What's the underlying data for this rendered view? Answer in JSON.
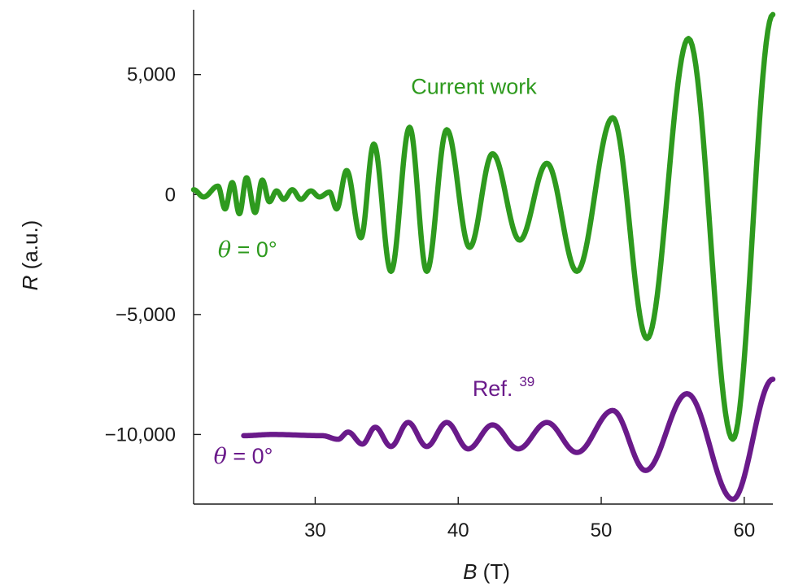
{
  "chart_data": {
    "type": "line",
    "xlim": [
      21.5,
      62
    ],
    "ylim": [
      -12900,
      7700
    ],
    "xticks": [
      30,
      40,
      50,
      60
    ],
    "xtick_labels": [
      "30",
      "40",
      "50",
      "60"
    ],
    "yticks": [
      5000,
      0,
      -5000,
      -10000
    ],
    "ytick_labels": [
      "5,000",
      "0",
      "−5,000",
      "−10,000"
    ],
    "xlabel_symbol": "B",
    "xlabel_unit": " (T)",
    "ylabel_symbol": "R",
    "ylabel_unit": " (a.u.)",
    "grid": false,
    "series": [
      {
        "name": "Current work",
        "color": "#2e9a1e",
        "x": [
          21.5,
          22.2,
          23.2,
          23.7,
          24.2,
          24.7,
          25.2,
          25.8,
          26.3,
          26.8,
          27.3,
          27.8,
          28.4,
          29.0,
          29.7,
          30.3,
          31.0,
          31.5,
          32.2,
          33.2,
          34.1,
          35.3,
          36.6,
          37.8,
          39.2,
          40.8,
          42.4,
          44.3,
          46.2,
          48.3,
          50.8,
          53.2,
          56.1,
          59.2,
          62.0
        ],
        "y": [
          200,
          -100,
          350,
          -600,
          500,
          -800,
          700,
          -750,
          600,
          -300,
          150,
          -200,
          200,
          -200,
          150,
          -100,
          100,
          -600,
          1000,
          -1800,
          2100,
          -3200,
          2800,
          -3200,
          2700,
          -2200,
          1700,
          -1900,
          1300,
          -3200,
          3200,
          -6000,
          6500,
          -10200,
          7500
        ],
        "label_text": "Current work",
        "label_x": 36.7,
        "label_y": 4200,
        "theta_x": 23.2,
        "theta_y": -2600
      },
      {
        "name": "Ref. 39",
        "color": "#6a1a8a",
        "x": [
          25.0,
          27.0,
          30.5,
          31.6,
          32.3,
          33.3,
          34.2,
          35.3,
          36.5,
          37.8,
          39.2,
          40.7,
          42.4,
          44.2,
          46.2,
          48.3,
          50.8,
          53.1,
          56.0,
          59.2,
          62.0
        ],
        "y": [
          -10050,
          -10000,
          -10050,
          -10200,
          -9900,
          -10400,
          -9700,
          -10500,
          -9500,
          -10500,
          -9500,
          -10600,
          -9600,
          -10600,
          -9500,
          -10750,
          -9000,
          -11500,
          -8300,
          -12700,
          -7700
        ],
        "label_text": "Ref.",
        "label_sup": "39",
        "label_x": 41.0,
        "label_y": -8400,
        "theta_x": 22.9,
        "theta_y": -11200
      }
    ],
    "annotation_theta": "θ = 0°"
  }
}
